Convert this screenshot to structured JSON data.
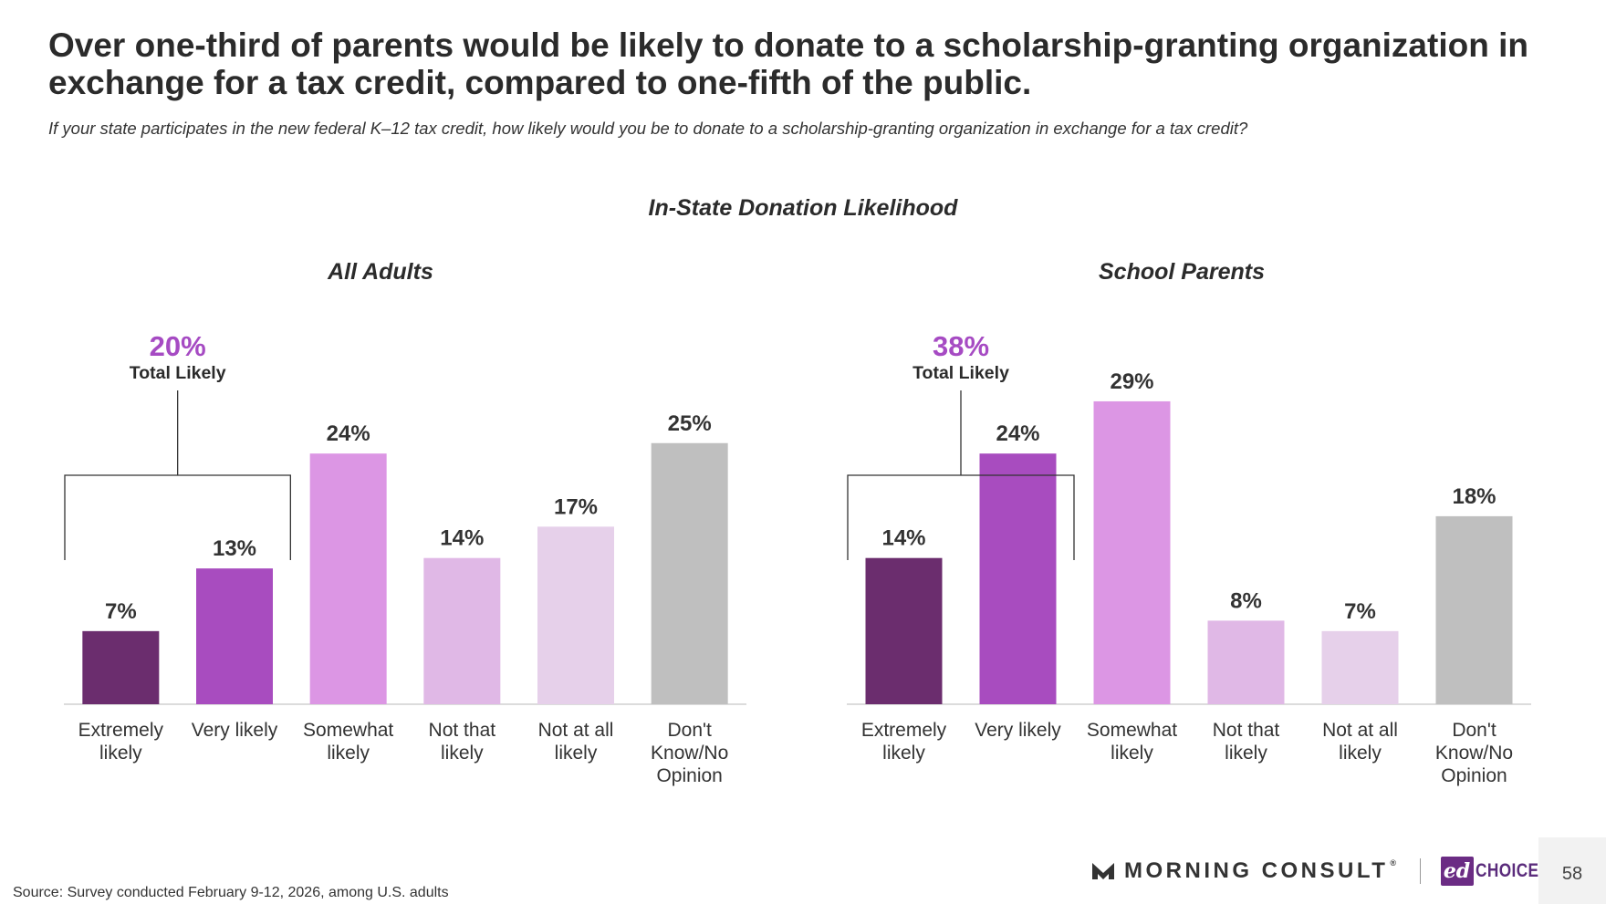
{
  "title": "Over one-third of parents would be likely to donate to a scholarship-granting organization in exchange for a tax credit, compared to one-fifth of the public.",
  "subtitle": "If your state participates in the new federal K–12 tax credit, how likely would you be to donate to a scholarship-granting organization in exchange for a tax credit?",
  "section_title": "In-State Donation Likelihood",
  "colors": [
    "#6b2d6e",
    "#a84cbf",
    "#dc96e4",
    "#e0b8e6",
    "#e6d0ea",
    "#bfbfbf"
  ],
  "total_color": "#a64bc3",
  "chart_data": [
    {
      "type": "bar",
      "title": "All Adults",
      "categories": [
        [
          "Extremely",
          "likely"
        ],
        [
          "Very likely"
        ],
        [
          "Somewhat",
          "likely"
        ],
        [
          "Not that",
          "likely"
        ],
        [
          "Not at all",
          "likely"
        ],
        [
          "Don't",
          "Know/No",
          "Opinion"
        ]
      ],
      "values": [
        7,
        13,
        24,
        14,
        17,
        25
      ],
      "value_labels": [
        "7%",
        "13%",
        "24%",
        "14%",
        "17%",
        "25%"
      ],
      "total": {
        "value": "20%",
        "label": "Total Likely",
        "spans": [
          0,
          1
        ]
      },
      "ylim": [
        0,
        30
      ]
    },
    {
      "type": "bar",
      "title": "School Parents",
      "categories": [
        [
          "Extremely",
          "likely"
        ],
        [
          "Very likely"
        ],
        [
          "Somewhat",
          "likely"
        ],
        [
          "Not that",
          "likely"
        ],
        [
          "Not at all",
          "likely"
        ],
        [
          "Don't",
          "Know/No",
          "Opinion"
        ]
      ],
      "values": [
        14,
        24,
        29,
        8,
        7,
        18
      ],
      "value_labels": [
        "14%",
        "24%",
        "29%",
        "8%",
        "7%",
        "18%"
      ],
      "total": {
        "value": "38%",
        "label": "Total Likely",
        "spans": [
          0,
          1
        ]
      },
      "ylim": [
        0,
        30
      ]
    }
  ],
  "footer": {
    "source": "Source: Survey conducted February 9-12, 2026, among U.S. adults",
    "brand_name": "MORNING CONSULT",
    "brand_tm": "®",
    "partner_badge": "ed",
    "partner_name": "CHOICE",
    "page_number": "58"
  }
}
